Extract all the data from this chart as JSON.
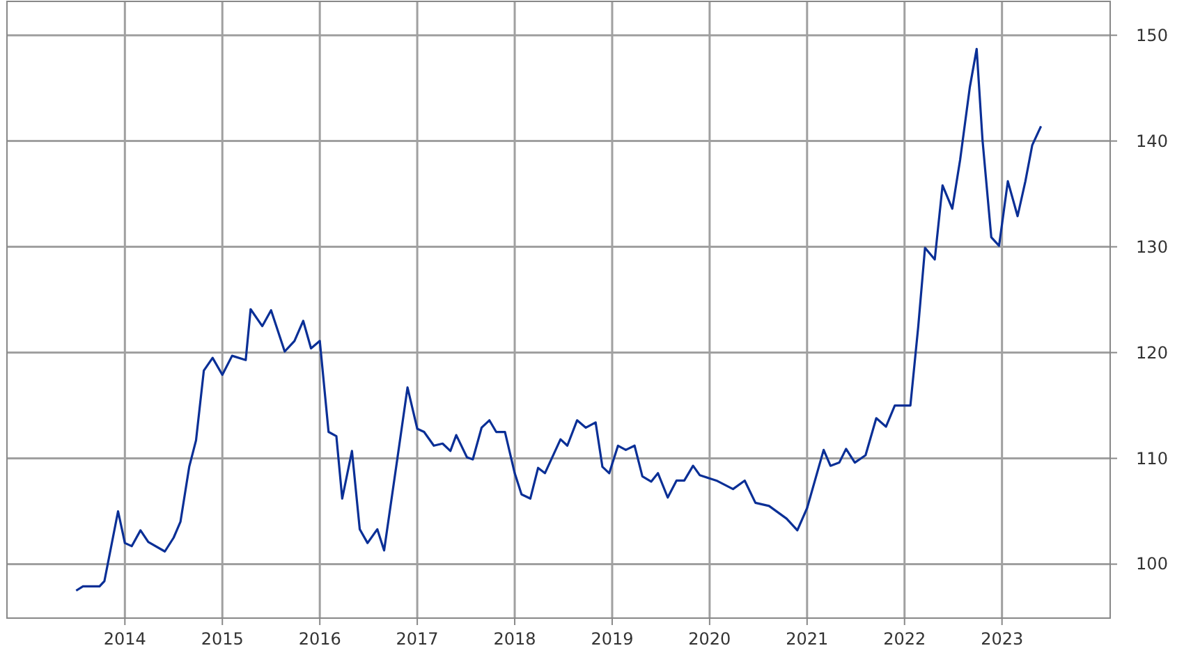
{
  "chart_data": {
    "type": "line",
    "x": [
      2013.5,
      2013.57,
      2013.74,
      2013.79,
      2013.93,
      2014,
      2014.07,
      2014.16,
      2014.24,
      2014.41,
      2014.5,
      2014.57,
      2014.66,
      2014.73,
      2014.81,
      2014.9,
      2015,
      2015.1,
      2015.24,
      2015.29,
      2015.41,
      2015.5,
      2015.64,
      2015.74,
      2015.83,
      2015.91,
      2016,
      2016.09,
      2016.17,
      2016.23,
      2016.33,
      2016.41,
      2016.49,
      2016.59,
      2016.66,
      2016.79,
      2016.9,
      2017,
      2017.07,
      2017.17,
      2017.26,
      2017.34,
      2017.4,
      2017.51,
      2017.57,
      2017.66,
      2017.74,
      2017.81,
      2017.9,
      2018,
      2018.07,
      2018.16,
      2018.24,
      2018.31,
      2018.47,
      2018.54,
      2018.64,
      2018.73,
      2018.83,
      2018.9,
      2018.97,
      2019.06,
      2019.14,
      2019.23,
      2019.31,
      2019.4,
      2019.47,
      2019.57,
      2019.66,
      2019.74,
      2019.83,
      2019.9,
      2020.07,
      2020.24,
      2020.36,
      2020.47,
      2020.61,
      2020.79,
      2020.9,
      2021,
      2021.17,
      2021.24,
      2021.33,
      2021.4,
      2021.49,
      2021.6,
      2021.71,
      2021.81,
      2021.9,
      2022.06,
      2022.14,
      2022.21,
      2022.31,
      2022.39,
      2022.49,
      2022.57,
      2022.67,
      2022.74,
      2022.8,
      2022.89,
      2022.97,
      2023.06,
      2023.16,
      2023.24,
      2023.31,
      2023.4
    ],
    "series": [
      {
        "color": "#0a2f96",
        "values": [
          97.5,
          97.9,
          97.9,
          98.4,
          105,
          102,
          101.7,
          103.2,
          102.1,
          101.2,
          102.5,
          104,
          109.2,
          111.7,
          118.3,
          119.5,
          117.9,
          119.7,
          119.3,
          124.1,
          122.5,
          124,
          120.1,
          121.1,
          123,
          120.4,
          121.1,
          112.5,
          112.1,
          106.2,
          110.7,
          103.3,
          102,
          103.3,
          101.3,
          109.6,
          116.7,
          112.8,
          112.5,
          111.2,
          111.4,
          110.7,
          112.2,
          110.1,
          109.9,
          112.9,
          113.6,
          112.5,
          112.5,
          108.6,
          106.6,
          106.2,
          109.1,
          108.6,
          111.8,
          111.2,
          113.6,
          112.9,
          113.4,
          109.2,
          108.6,
          111.2,
          110.8,
          111.2,
          108.3,
          107.8,
          108.6,
          106.3,
          107.9,
          107.9,
          109.3,
          108.4,
          107.9,
          107.1,
          107.9,
          105.8,
          105.5,
          104.3,
          103.2,
          105.3,
          110.8,
          109.3,
          109.6,
          110.9,
          109.6,
          110.3,
          113.8,
          113,
          115,
          115,
          122.4,
          129.9,
          128.8,
          135.8,
          133.6,
          138.2,
          145.1,
          148.7,
          140.1,
          130.9,
          130.1,
          136.2,
          132.9,
          136.2,
          139.6,
          141.4
        ]
      }
    ],
    "xlim": [
      2012.79,
      2024.11
    ],
    "xticks": [
      2014,
      2015,
      2016,
      2017,
      2018,
      2019,
      2020,
      2021,
      2022,
      2023
    ],
    "ylim": [
      94.9,
      153.2
    ],
    "yticks": [
      100,
      110,
      120,
      130,
      140,
      150
    ],
    "grid": true,
    "marker": "none",
    "line_style": "solid"
  }
}
